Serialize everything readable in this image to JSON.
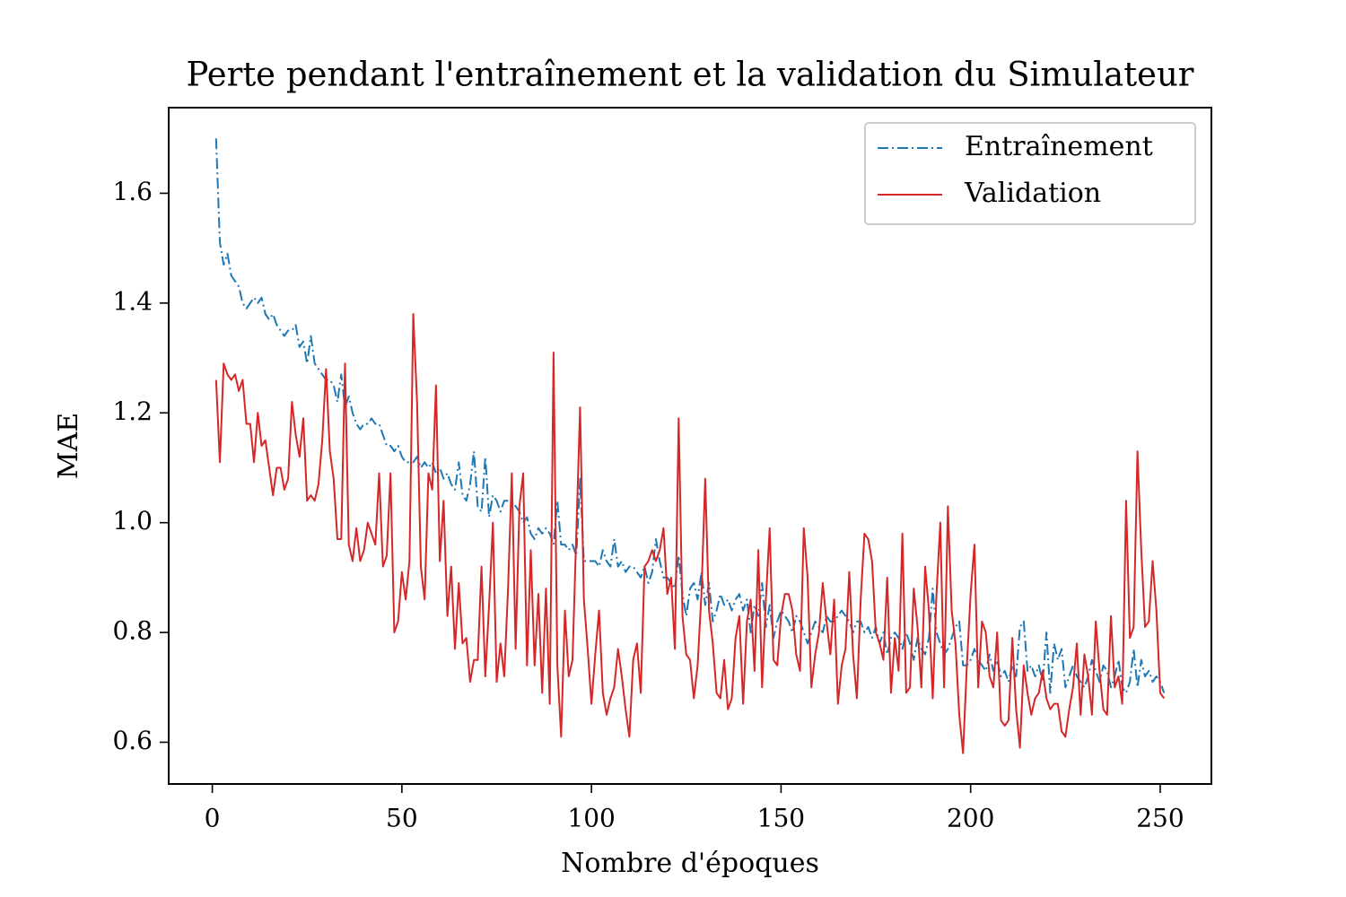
{
  "chart_data": {
    "type": "line",
    "title": "Perte pendant l'entraînement et la validation du Simulateur",
    "xlabel": "Nombre d'époques",
    "ylabel": "MAE",
    "xlim": [
      -11.5,
      263.5
    ],
    "ylim": [
      0.524,
      1.756
    ],
    "xticks": [
      0,
      50,
      100,
      150,
      200,
      250
    ],
    "yticks": [
      0.6,
      0.8,
      {
        "value": 1,
        "label": "1.0"
      },
      1.2,
      1.4,
      1.6
    ],
    "legend": "upper right",
    "grid": false,
    "x": [
      1,
      2,
      3,
      4,
      5,
      6,
      7,
      8,
      9,
      10,
      11,
      12,
      13,
      14,
      15,
      16,
      17,
      18,
      19,
      20,
      21,
      22,
      23,
      24,
      25,
      26,
      27,
      28,
      29,
      30,
      31,
      32,
      33,
      34,
      35,
      36,
      37,
      38,
      39,
      40,
      41,
      42,
      43,
      44,
      45,
      46,
      47,
      48,
      49,
      50,
      51,
      52,
      53,
      54,
      55,
      56,
      57,
      58,
      59,
      60,
      61,
      62,
      63,
      64,
      65,
      66,
      67,
      68,
      69,
      70,
      71,
      72,
      73,
      74,
      75,
      76,
      77,
      78,
      79,
      80,
      81,
      82,
      83,
      84,
      85,
      86,
      87,
      88,
      89,
      90,
      91,
      92,
      93,
      94,
      95,
      96,
      97,
      98,
      99,
      100,
      101,
      102,
      103,
      104,
      105,
      106,
      107,
      108,
      109,
      110,
      111,
      112,
      113,
      114,
      115,
      116,
      117,
      118,
      119,
      120,
      121,
      122,
      123,
      124,
      125,
      126,
      127,
      128,
      129,
      130,
      131,
      132,
      133,
      134,
      135,
      136,
      137,
      138,
      139,
      140,
      141,
      142,
      143,
      144,
      145,
      146,
      147,
      148,
      149,
      150,
      151,
      152,
      153,
      154,
      155,
      156,
      157,
      158,
      159,
      160,
      161,
      162,
      163,
      164,
      165,
      166,
      167,
      168,
      169,
      170,
      171,
      172,
      173,
      174,
      175,
      176,
      177,
      178,
      179,
      180,
      181,
      182,
      183,
      184,
      185,
      186,
      187,
      188,
      189,
      190,
      191,
      192,
      193,
      194,
      195,
      196,
      197,
      198,
      199,
      200,
      201,
      202,
      203,
      204,
      205,
      206,
      207,
      208,
      209,
      210,
      211,
      212,
      213,
      214,
      215,
      216,
      217,
      218,
      219,
      220,
      221,
      222,
      223,
      224,
      225,
      226,
      227,
      228,
      229,
      230,
      231,
      232,
      233,
      234,
      235,
      236,
      237,
      238,
      239,
      240,
      241,
      242,
      243,
      244,
      245,
      246,
      247,
      248,
      249,
      250,
      251
    ],
    "series": [
      {
        "name": "Entraînement",
        "color": "#1f77b4",
        "linestyle": "dashdot",
        "values": [
          1.7,
          1.51,
          1.47,
          1.49,
          1.45,
          1.44,
          1.43,
          1.4,
          1.39,
          1.4,
          1.41,
          1.4,
          1.41,
          1.38,
          1.37,
          1.38,
          1.36,
          1.35,
          1.34,
          1.35,
          1.35,
          1.36,
          1.32,
          1.33,
          1.29,
          1.34,
          1.29,
          1.28,
          1.27,
          1.26,
          1.26,
          1.25,
          1.22,
          1.27,
          1.21,
          1.23,
          1.2,
          1.18,
          1.17,
          1.18,
          1.18,
          1.19,
          1.18,
          1.18,
          1.16,
          1.14,
          1.14,
          1.13,
          1.14,
          1.12,
          1.11,
          1.11,
          1.11,
          1.12,
          1.1,
          1.11,
          1.1,
          1.11,
          1.09,
          1.1,
          1.08,
          1.09,
          1.07,
          1.06,
          1.11,
          1.05,
          1.04,
          1.07,
          1.13,
          1.03,
          1.02,
          1.12,
          1.01,
          1.05,
          1.04,
          1.02,
          1.04,
          1.04,
          1.04,
          1.03,
          1.02,
          1.0,
          1.01,
          0.98,
          0.97,
          0.99,
          0.98,
          0.99,
          0.98,
          0.96,
          1.04,
          0.96,
          0.96,
          0.95,
          0.96,
          0.94,
          1.08,
          0.93,
          0.93,
          0.93,
          0.93,
          0.92,
          0.95,
          0.93,
          0.92,
          0.97,
          0.92,
          0.93,
          0.91,
          0.92,
          0.92,
          0.91,
          0.9,
          0.92,
          0.89,
          0.91,
          0.97,
          0.93,
          0.9,
          0.9,
          0.89,
          0.88,
          0.94,
          0.87,
          0.83,
          0.88,
          0.89,
          0.86,
          0.91,
          0.85,
          0.89,
          0.82,
          0.84,
          0.87,
          0.85,
          0.86,
          0.84,
          0.86,
          0.87,
          0.84,
          0.86,
          0.8,
          0.85,
          0.83,
          0.89,
          0.81,
          0.85,
          0.79,
          0.82,
          0.84,
          0.83,
          0.82,
          0.8,
          0.83,
          0.82,
          0.8,
          0.78,
          0.8,
          0.82,
          0.81,
          0.8,
          0.83,
          0.82,
          0.82,
          0.83,
          0.84,
          0.83,
          0.82,
          0.8,
          0.82,
          0.82,
          0.8,
          0.81,
          0.79,
          0.81,
          0.78,
          0.8,
          0.76,
          0.79,
          0.8,
          0.79,
          0.77,
          0.8,
          0.78,
          0.75,
          0.79,
          0.77,
          0.76,
          0.79,
          0.88,
          0.8,
          0.78,
          0.76,
          0.77,
          0.79,
          0.81,
          0.82,
          0.74,
          0.74,
          0.75,
          0.77,
          0.75,
          0.74,
          0.73,
          0.76,
          0.73,
          0.75,
          0.72,
          0.73,
          0.71,
          0.74,
          0.72,
          0.81,
          0.82,
          0.73,
          0.74,
          0.72,
          0.74,
          0.71,
          0.8,
          0.69,
          0.78,
          0.75,
          0.77,
          0.7,
          0.72,
          0.74,
          0.72,
          0.71,
          0.7,
          0.72,
          0.75,
          0.73,
          0.71,
          0.74,
          0.73,
          0.7,
          0.72,
          0.75,
          0.7,
          0.69,
          0.71,
          0.77,
          0.7,
          0.75,
          0.72,
          0.73,
          0.71,
          0.72,
          0.71,
          0.69
        ]
      },
      {
        "name": "Validation",
        "color": "#d62728",
        "linestyle": "solid",
        "values": [
          1.26,
          1.11,
          1.29,
          1.27,
          1.26,
          1.27,
          1.24,
          1.26,
          1.18,
          1.18,
          1.11,
          1.2,
          1.14,
          1.15,
          1.1,
          1.05,
          1.1,
          1.1,
          1.06,
          1.08,
          1.22,
          1.16,
          1.12,
          1.19,
          1.04,
          1.05,
          1.04,
          1.07,
          1.15,
          1.28,
          1.13,
          1.08,
          0.97,
          0.97,
          1.29,
          0.96,
          0.93,
          0.99,
          0.93,
          0.95,
          1.0,
          0.98,
          0.96,
          1.09,
          0.92,
          0.94,
          1.09,
          0.8,
          0.82,
          0.91,
          0.86,
          0.93,
          1.38,
          1.22,
          0.92,
          0.86,
          1.09,
          1.06,
          1.25,
          0.93,
          1.04,
          0.83,
          0.92,
          0.77,
          0.89,
          0.78,
          0.79,
          0.71,
          0.75,
          0.75,
          0.92,
          0.72,
          0.85,
          1.0,
          0.71,
          0.78,
          0.72,
          0.88,
          1.09,
          0.77,
          1.03,
          1.09,
          0.74,
          0.95,
          0.74,
          0.87,
          0.69,
          0.88,
          0.67,
          1.31,
          0.74,
          0.61,
          0.84,
          0.72,
          0.75,
          0.98,
          1.21,
          0.86,
          0.77,
          0.67,
          0.76,
          0.84,
          0.69,
          0.65,
          0.68,
          0.7,
          0.77,
          0.72,
          0.66,
          0.61,
          0.75,
          0.78,
          0.69,
          0.92,
          0.93,
          0.95,
          0.93,
          0.95,
          0.99,
          0.87,
          0.9,
          0.77,
          1.19,
          0.83,
          0.76,
          0.75,
          0.68,
          0.74,
          0.87,
          1.08,
          0.84,
          0.78,
          0.69,
          0.68,
          0.75,
          0.66,
          0.68,
          0.79,
          0.83,
          0.67,
          0.82,
          0.86,
          0.73,
          0.95,
          0.7,
          0.86,
          0.99,
          0.75,
          0.74,
          0.83,
          0.87,
          0.87,
          0.84,
          0.76,
          0.73,
          0.99,
          0.9,
          0.7,
          0.76,
          0.8,
          0.89,
          0.82,
          0.76,
          0.86,
          0.67,
          0.74,
          0.77,
          0.91,
          0.76,
          0.68,
          0.86,
          0.98,
          0.97,
          0.93,
          0.8,
          0.78,
          0.75,
          0.9,
          0.69,
          0.79,
          0.73,
          0.98,
          0.69,
          0.7,
          0.88,
          0.81,
          0.7,
          0.92,
          0.84,
          0.68,
          0.87,
          1.0,
          0.7,
          1.03,
          0.84,
          0.78,
          0.65,
          0.58,
          0.74,
          0.87,
          0.96,
          0.7,
          0.82,
          0.8,
          0.72,
          0.7,
          0.8,
          0.64,
          0.63,
          0.64,
          0.79,
          0.66,
          0.59,
          0.74,
          0.69,
          0.65,
          0.68,
          0.69,
          0.73,
          0.68,
          0.66,
          0.67,
          0.67,
          0.62,
          0.61,
          0.66,
          0.7,
          0.78,
          0.65,
          0.76,
          0.72,
          0.65,
          0.82,
          0.73,
          0.66,
          0.65,
          0.83,
          0.7,
          0.72,
          0.67,
          1.04,
          0.79,
          0.81,
          1.13,
          0.95,
          0.81,
          0.82,
          0.93,
          0.84,
          0.69,
          0.68
        ]
      }
    ]
  }
}
